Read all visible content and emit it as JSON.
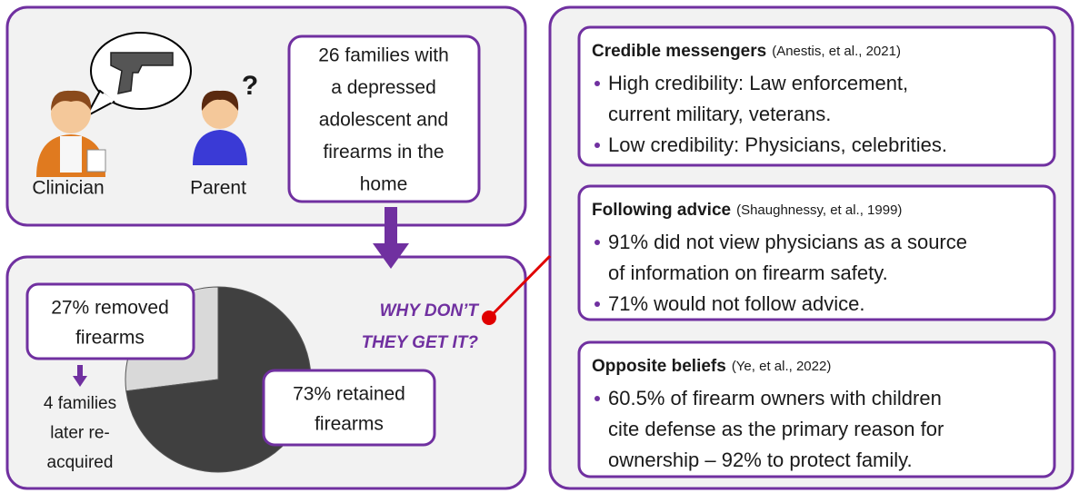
{
  "scenario": {
    "clinician_label": "Clinician",
    "parent_label": "Parent",
    "question_mark": "?",
    "families_text": [
      "26 families with",
      "a depressed",
      "adolescent and",
      "firearms in the",
      "home"
    ]
  },
  "outcomes": {
    "pie": {
      "slices": [
        {
          "label": [
            "27% removed",
            "firearms"
          ],
          "value": 27,
          "color": "#d9d9d9"
        },
        {
          "label": [
            "73% retained",
            "firearms"
          ],
          "value": 73,
          "color": "#404040"
        }
      ]
    },
    "reacquired": [
      "4 families",
      "later re-",
      "acquired"
    ],
    "question": [
      "WHY DON’T",
      "THEY GET IT?"
    ]
  },
  "evidence": [
    {
      "heading": "Credible messengers",
      "citation": "(Anestis, et al., 2021)",
      "bullets": [
        [
          "High credibility: Law enforcement,",
          "current military, veterans."
        ],
        [
          "Low credibility: Physicians, celebrities."
        ]
      ]
    },
    {
      "heading": "Following advice",
      "citation": "(Shaughnessy, et al., 1999)",
      "bullets": [
        [
          "91% did not view physicians as a source",
          "of information on firearm safety."
        ],
        [
          "71% would not follow advice."
        ]
      ]
    },
    {
      "heading": "Opposite beliefs",
      "citation": "(Ye, et al., 2022)",
      "bullets": [
        [
          "60.5% of firearm owners with children",
          "cite defense as the primary reason for",
          "ownership – 92% to protect family."
        ]
      ]
    }
  ]
}
